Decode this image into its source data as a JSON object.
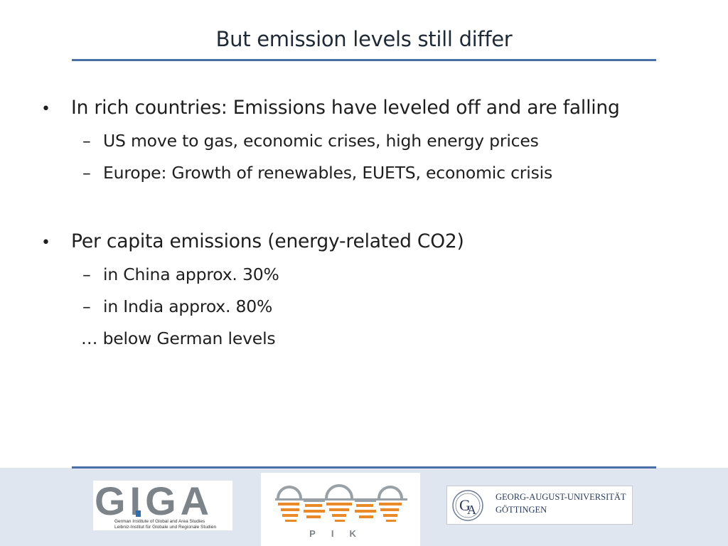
{
  "slide": {
    "title": "But emission levels still differ",
    "bullets": [
      {
        "text": "In rich countries: Emissions have leveled off and are falling",
        "sub": [
          "US move to gas, economic crises, high energy prices",
          "Europe: Growth of renewables, EUETS, economic crisis"
        ]
      },
      {
        "text": "Per capita emissions (energy-related CO2)",
        "sub": [
          "in China approx. 30%",
          "in India approx. 80%"
        ],
        "note": "… below German levels"
      }
    ]
  },
  "footer": {
    "logos": {
      "giga": {
        "letters": "GIGA",
        "line1": "German Institute of Global and Area Studies",
        "line2": "Leibniz-Institut für Globale und Regionale Studien"
      },
      "pik": {
        "label": "PIK"
      },
      "goettingen": {
        "line1": "GEORG-AUGUST-UNIVERSITÄT",
        "line2": "GÖTTINGEN"
      }
    }
  },
  "colors": {
    "rule": "#4a6fa6",
    "footer_band": "#dfe6ef",
    "pik_orange": "#e8892a",
    "giga_blue": "#2f6fb0"
  }
}
